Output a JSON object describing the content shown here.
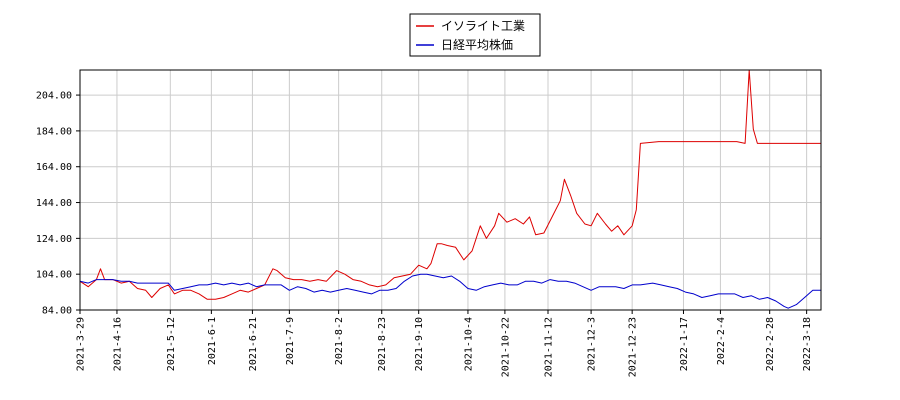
{
  "chart_data": {
    "type": "line",
    "title": "",
    "xlabel": "",
    "ylabel": "",
    "ylim": [
      84,
      218
    ],
    "yticks": [
      84,
      104,
      124,
      144,
      164,
      184,
      204
    ],
    "ytick_labels": [
      "84.00",
      "104.00",
      "124.00",
      "144.00",
      "164.00",
      "184.00",
      "204.00"
    ],
    "xlim": [
      "2021-03-29",
      "2022-03-25"
    ],
    "xticks": [
      "2021-3-29",
      "2021-4-16",
      "2021-5-12",
      "2021-6-1",
      "2021-6-21",
      "2021-7-9",
      "2021-8-2",
      "2021-8-23",
      "2021-9-10",
      "2021-10-4",
      "2021-10-22",
      "2021-11-12",
      "2021-12-3",
      "2021-12-23",
      "2022-1-17",
      "2022-2-4",
      "2022-2-28",
      "2022-3-18"
    ],
    "grid": true,
    "legend_position": "top-center",
    "series": [
      {
        "name": "イソライト工業",
        "color": "#dd0000",
        "points": [
          [
            "2021-03-29",
            100
          ],
          [
            "2021-04-02",
            97
          ],
          [
            "2021-04-06",
            101
          ],
          [
            "2021-04-08",
            107
          ],
          [
            "2021-04-10",
            101
          ],
          [
            "2021-04-14",
            101
          ],
          [
            "2021-04-18",
            99
          ],
          [
            "2021-04-22",
            100
          ],
          [
            "2021-04-26",
            96
          ],
          [
            "2021-04-30",
            95
          ],
          [
            "2021-05-03",
            91
          ],
          [
            "2021-05-07",
            96
          ],
          [
            "2021-05-11",
            98
          ],
          [
            "2021-05-14",
            93
          ],
          [
            "2021-05-18",
            95
          ],
          [
            "2021-05-22",
            95
          ],
          [
            "2021-05-26",
            93
          ],
          [
            "2021-05-30",
            90
          ],
          [
            "2021-06-03",
            90
          ],
          [
            "2021-06-07",
            91
          ],
          [
            "2021-06-11",
            93
          ],
          [
            "2021-06-15",
            95
          ],
          [
            "2021-06-19",
            94
          ],
          [
            "2021-06-23",
            96
          ],
          [
            "2021-06-27",
            98
          ],
          [
            "2021-07-01",
            107
          ],
          [
            "2021-07-03",
            106
          ],
          [
            "2021-07-07",
            102
          ],
          [
            "2021-07-11",
            101
          ],
          [
            "2021-07-15",
            101
          ],
          [
            "2021-07-19",
            100
          ],
          [
            "2021-07-23",
            101
          ],
          [
            "2021-07-27",
            100
          ],
          [
            "2021-08-01",
            106
          ],
          [
            "2021-08-05",
            104
          ],
          [
            "2021-08-09",
            101
          ],
          [
            "2021-08-13",
            100
          ],
          [
            "2021-08-17",
            98
          ],
          [
            "2021-08-21",
            97
          ],
          [
            "2021-08-25",
            98
          ],
          [
            "2021-08-29",
            102
          ],
          [
            "2021-09-02",
            103
          ],
          [
            "2021-09-06",
            104
          ],
          [
            "2021-09-10",
            109
          ],
          [
            "2021-09-14",
            107
          ],
          [
            "2021-09-16",
            110
          ],
          [
            "2021-09-19",
            121
          ],
          [
            "2021-09-21",
            121
          ],
          [
            "2021-09-24",
            120
          ],
          [
            "2021-09-28",
            119
          ],
          [
            "2021-10-02",
            112
          ],
          [
            "2021-10-06",
            117
          ],
          [
            "2021-10-10",
            131
          ],
          [
            "2021-10-13",
            124
          ],
          [
            "2021-10-17",
            131
          ],
          [
            "2021-10-19",
            138
          ],
          [
            "2021-10-23",
            133
          ],
          [
            "2021-10-27",
            135
          ],
          [
            "2021-10-31",
            132
          ],
          [
            "2021-11-03",
            136
          ],
          [
            "2021-11-06",
            126
          ],
          [
            "2021-11-10",
            127
          ],
          [
            "2021-11-14",
            136
          ],
          [
            "2021-11-18",
            145
          ],
          [
            "2021-11-20",
            157
          ],
          [
            "2021-11-23",
            148
          ],
          [
            "2021-11-26",
            138
          ],
          [
            "2021-11-30",
            132
          ],
          [
            "2021-12-03",
            131
          ],
          [
            "2021-12-06",
            138
          ],
          [
            "2021-12-10",
            132
          ],
          [
            "2021-12-13",
            128
          ],
          [
            "2021-12-16",
            131
          ],
          [
            "2021-12-19",
            126
          ],
          [
            "2021-12-23",
            131
          ],
          [
            "2021-12-25",
            140
          ],
          [
            "2021-12-27",
            177
          ],
          [
            "2022-01-05",
            178
          ],
          [
            "2022-01-15",
            178
          ],
          [
            "2022-01-25",
            178
          ],
          [
            "2022-02-04",
            178
          ],
          [
            "2022-02-12",
            178
          ],
          [
            "2022-02-16",
            177
          ],
          [
            "2022-02-18",
            218
          ],
          [
            "2022-02-20",
            185
          ],
          [
            "2022-02-22",
            177
          ],
          [
            "2022-02-26",
            177
          ],
          [
            "2022-03-05",
            177
          ],
          [
            "2022-03-15",
            177
          ],
          [
            "2022-03-25",
            177
          ]
        ]
      },
      {
        "name": "日経平均株価",
        "color": "#0000cc",
        "points": [
          [
            "2021-03-29",
            100
          ],
          [
            "2021-04-02",
            99
          ],
          [
            "2021-04-06",
            101
          ],
          [
            "2021-04-10",
            101
          ],
          [
            "2021-04-14",
            101
          ],
          [
            "2021-04-18",
            100
          ],
          [
            "2021-04-22",
            100
          ],
          [
            "2021-04-26",
            99
          ],
          [
            "2021-04-30",
            99
          ],
          [
            "2021-05-03",
            99
          ],
          [
            "2021-05-07",
            99
          ],
          [
            "2021-05-11",
            99
          ],
          [
            "2021-05-14",
            95
          ],
          [
            "2021-05-18",
            96
          ],
          [
            "2021-05-22",
            97
          ],
          [
            "2021-05-26",
            98
          ],
          [
            "2021-05-30",
            98
          ],
          [
            "2021-06-03",
            99
          ],
          [
            "2021-06-07",
            98
          ],
          [
            "2021-06-11",
            99
          ],
          [
            "2021-06-15",
            98
          ],
          [
            "2021-06-19",
            99
          ],
          [
            "2021-06-23",
            97
          ],
          [
            "2021-06-27",
            98
          ],
          [
            "2021-07-01",
            98
          ],
          [
            "2021-07-05",
            98
          ],
          [
            "2021-07-09",
            95
          ],
          [
            "2021-07-13",
            97
          ],
          [
            "2021-07-17",
            96
          ],
          [
            "2021-07-21",
            94
          ],
          [
            "2021-07-25",
            95
          ],
          [
            "2021-07-29",
            94
          ],
          [
            "2021-08-02",
            95
          ],
          [
            "2021-08-06",
            96
          ],
          [
            "2021-08-10",
            95
          ],
          [
            "2021-08-14",
            94
          ],
          [
            "2021-08-18",
            93
          ],
          [
            "2021-08-22",
            95
          ],
          [
            "2021-08-26",
            95
          ],
          [
            "2021-08-30",
            96
          ],
          [
            "2021-09-03",
            100
          ],
          [
            "2021-09-07",
            103
          ],
          [
            "2021-09-11",
            104
          ],
          [
            "2021-09-14",
            104
          ],
          [
            "2021-09-18",
            103
          ],
          [
            "2021-09-22",
            102
          ],
          [
            "2021-09-26",
            103
          ],
          [
            "2021-09-30",
            100
          ],
          [
            "2021-10-04",
            96
          ],
          [
            "2021-10-08",
            95
          ],
          [
            "2021-10-12",
            97
          ],
          [
            "2021-10-16",
            98
          ],
          [
            "2021-10-20",
            99
          ],
          [
            "2021-10-24",
            98
          ],
          [
            "2021-10-28",
            98
          ],
          [
            "2021-11-01",
            100
          ],
          [
            "2021-11-05",
            100
          ],
          [
            "2021-11-09",
            99
          ],
          [
            "2021-11-13",
            101
          ],
          [
            "2021-11-17",
            100
          ],
          [
            "2021-11-21",
            100
          ],
          [
            "2021-11-25",
            99
          ],
          [
            "2021-11-29",
            97
          ],
          [
            "2021-12-03",
            95
          ],
          [
            "2021-12-07",
            97
          ],
          [
            "2021-12-11",
            97
          ],
          [
            "2021-12-15",
            97
          ],
          [
            "2021-12-19",
            96
          ],
          [
            "2021-12-23",
            98
          ],
          [
            "2021-12-27",
            98
          ],
          [
            "2022-01-02",
            99
          ],
          [
            "2022-01-06",
            98
          ],
          [
            "2022-01-10",
            97
          ],
          [
            "2022-01-14",
            96
          ],
          [
            "2022-01-18",
            94
          ],
          [
            "2022-01-22",
            93
          ],
          [
            "2022-01-26",
            91
          ],
          [
            "2022-01-30",
            92
          ],
          [
            "2022-02-03",
            93
          ],
          [
            "2022-02-07",
            93
          ],
          [
            "2022-02-11",
            93
          ],
          [
            "2022-02-15",
            91
          ],
          [
            "2022-02-19",
            92
          ],
          [
            "2022-02-23",
            90
          ],
          [
            "2022-02-27",
            91
          ],
          [
            "2022-03-03",
            89
          ],
          [
            "2022-03-07",
            86
          ],
          [
            "2022-03-09",
            85
          ],
          [
            "2022-03-13",
            87
          ],
          [
            "2022-03-17",
            91
          ],
          [
            "2022-03-21",
            95
          ],
          [
            "2022-03-25",
            95
          ]
        ]
      }
    ]
  }
}
